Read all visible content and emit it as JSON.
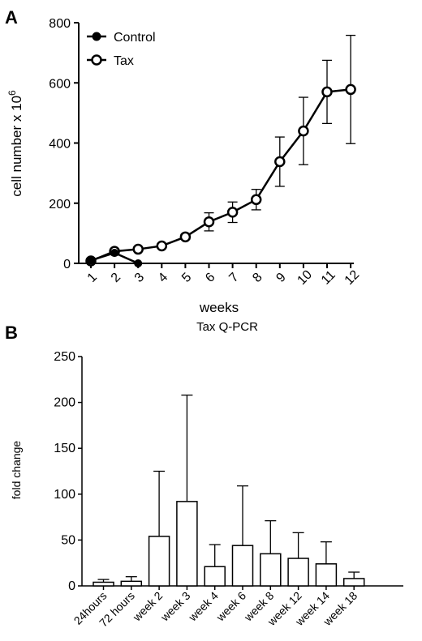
{
  "chart_data": [
    {
      "panel_label": "A",
      "type": "line",
      "title": "",
      "xlabel": "weeks",
      "ylabel_prefix": "cell number x 10",
      "ylabel_sup": "6",
      "ylim": [
        0,
        800
      ],
      "yticks": [
        0,
        200,
        400,
        600,
        800
      ],
      "x": [
        1,
        2,
        3,
        4,
        5,
        6,
        7,
        8,
        9,
        10,
        11,
        12
      ],
      "xticks": [
        "1",
        "2",
        "3",
        "4",
        "5",
        "6",
        "7",
        "8",
        "9",
        "10",
        "11",
        "12"
      ],
      "legend_position": "top-left",
      "series": [
        {
          "name": "Control",
          "marker": "filled-circle",
          "points": [
            [
              1,
              10
            ],
            [
              2,
              35
            ],
            [
              3,
              0
            ]
          ],
          "err": [
            0,
            5,
            0
          ]
        },
        {
          "name": "Tax",
          "marker": "open-circle",
          "points": [
            [
              1,
              8
            ],
            [
              2,
              40
            ],
            [
              3,
              47
            ],
            [
              4,
              58
            ],
            [
              5,
              88
            ],
            [
              6,
              138
            ],
            [
              7,
              170
            ],
            [
              8,
              212
            ],
            [
              9,
              338
            ],
            [
              10,
              440
            ],
            [
              11,
              570
            ],
            [
              12,
              578
            ]
          ],
          "err": [
            3,
            6,
            6,
            6,
            8,
            30,
            34,
            34,
            82,
            112,
            105,
            180
          ]
        }
      ]
    },
    {
      "panel_label": "B",
      "type": "bar",
      "title": "Tax Q-PCR",
      "xlabel": "",
      "ylabel": "fold change",
      "ylim": [
        0,
        250
      ],
      "yticks": [
        0,
        50,
        100,
        150,
        200,
        250
      ],
      "categories": [
        "24hours",
        "72 hours",
        "week 2",
        "week 3",
        "week 4",
        "week 6",
        "week 8",
        "week 12",
        "week 14",
        "week 18"
      ],
      "values": [
        4,
        5,
        54,
        92,
        21,
        44,
        35,
        30,
        24,
        8
      ],
      "err_upper": [
        3,
        5,
        71,
        116,
        24,
        65,
        36,
        28,
        24,
        7
      ]
    }
  ]
}
